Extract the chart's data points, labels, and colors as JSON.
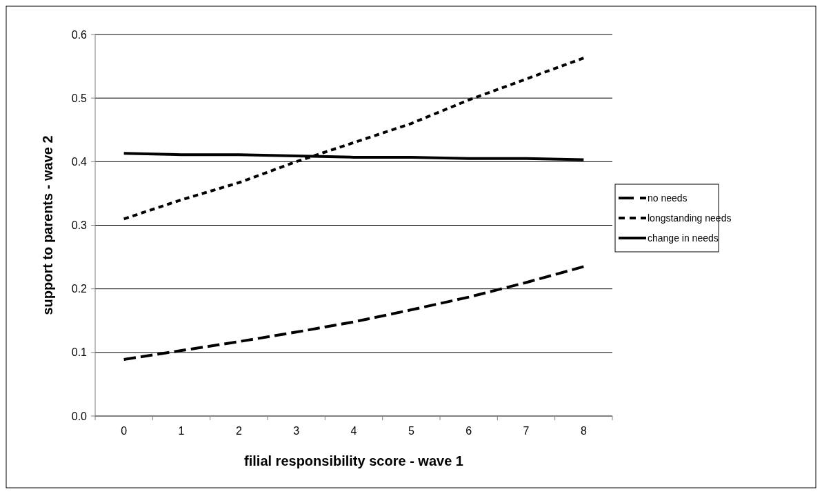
{
  "chart_data": {
    "type": "line",
    "xlabel": "filial responsibility score - wave 1",
    "ylabel": "support to parents - wave 2",
    "categories": [
      "0",
      "1",
      "2",
      "3",
      "4",
      "5",
      "6",
      "7",
      "8"
    ],
    "series": [
      {
        "name": "no needs",
        "color": "#000000",
        "line_style": "dashed",
        "values": [
          0.089,
          0.103,
          0.117,
          0.132,
          0.148,
          0.167,
          0.187,
          0.21,
          0.235
        ]
      },
      {
        "name": "longstanding needs",
        "color": "#000000",
        "line_style": "dotted",
        "values": [
          0.31,
          0.34,
          0.367,
          0.4,
          0.43,
          0.46,
          0.497,
          0.53,
          0.563
        ]
      },
      {
        "name": "change in needs",
        "color": "#000000",
        "line_style": "solid",
        "values": [
          0.413,
          0.411,
          0.411,
          0.409,
          0.407,
          0.407,
          0.405,
          0.405,
          0.403
        ]
      }
    ],
    "ylim": [
      0,
      0.6
    ],
    "yticks": [
      {
        "value": 0,
        "label": "0.0"
      },
      0.1,
      0.2,
      0.3,
      0.4,
      0.5,
      0.6
    ],
    "grid": "y",
    "legend": "right",
    "marker": "none"
  }
}
